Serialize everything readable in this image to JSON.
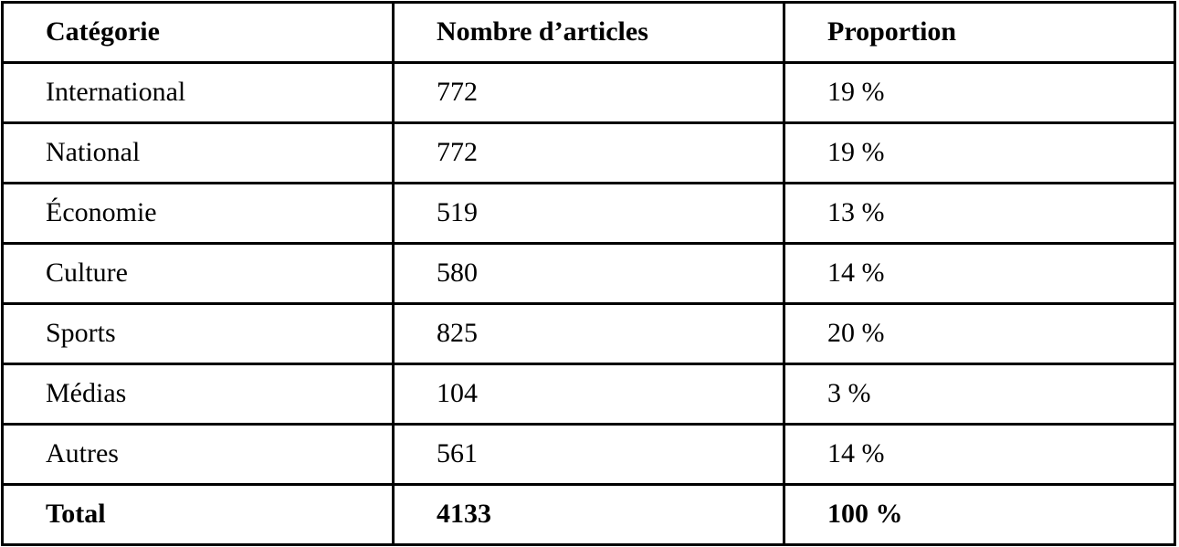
{
  "table": {
    "header": [
      "Catégorie",
      "Nombre d’articles",
      "Proportion"
    ],
    "rows": [
      [
        "International",
        772,
        "19 %"
      ],
      [
        "National",
        772,
        "19 %"
      ],
      [
        "Économie",
        519,
        "13 %"
      ],
      [
        "Culture",
        580,
        "14 %"
      ],
      [
        "Sports",
        825,
        "20 %"
      ],
      [
        "Médias",
        104,
        "3 %"
      ],
      [
        "Autres",
        561,
        "14 %"
      ]
    ],
    "total": [
      "Total",
      4133,
      "100 %"
    ]
  }
}
